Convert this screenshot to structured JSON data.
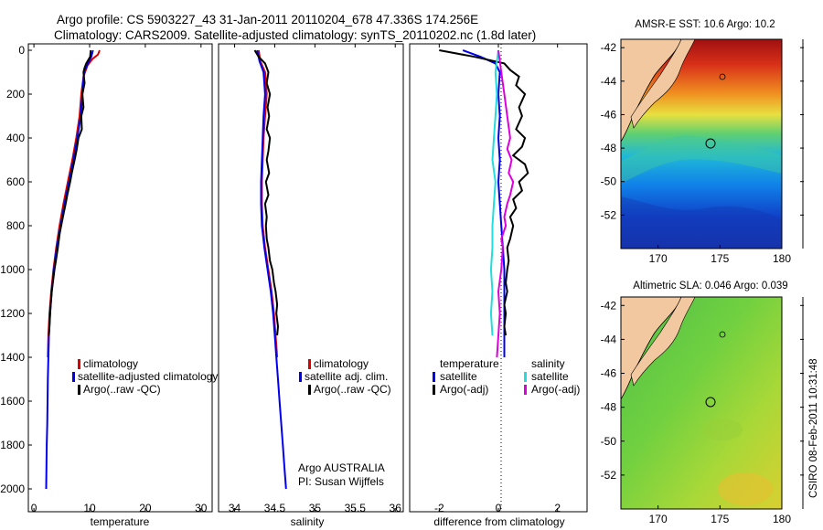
{
  "header": {
    "line1": "Argo profile: CS 5903227_43 31-Jan-2011 20110204_678 47.336S 174.256E",
    "line2": "Climatology: CARS2009. Satellite-adjusted climatology: synTS_20110202.nc (1.8d later)"
  },
  "footer": {
    "owner": "Argo AUSTRALIA",
    "pi": "PI: Susan Wijffels",
    "side_stamp": "CSIRO 08-Feb-2011 10:31:48"
  },
  "colors": {
    "climatology": "#dd0000",
    "satellite": "#0000ee",
    "argo": "#000000",
    "satellite_salinity": "#22dddd",
    "argo_adj_salinity": "#dd00dd",
    "land": "#f2c8a0"
  },
  "chart_data": [
    {
      "id": "temperature",
      "type": "line",
      "xlabel": "temperature",
      "ylabel": "",
      "xlim": [
        -1,
        32
      ],
      "ylim": [
        2050,
        0
      ],
      "x_ticks": [
        0,
        10,
        20,
        30
      ],
      "y_ticks": [
        0,
        200,
        400,
        600,
        800,
        1000,
        1200,
        1400,
        1600,
        1800,
        2000
      ],
      "legend": {
        "placement": "bottom-right",
        "entries": [
          "climatology",
          "satellite-adjusted climatology",
          "Argo(..raw -QC)"
        ]
      },
      "series": [
        {
          "name": "climatology",
          "color": "#dd0000",
          "points": [
            [
              11.8,
              0
            ],
            [
              11.5,
              20
            ],
            [
              10.5,
              40
            ],
            [
              9.6,
              70
            ],
            [
              8.9,
              120
            ],
            [
              8.5,
              200
            ],
            [
              8.2,
              300
            ],
            [
              7.6,
              400
            ],
            [
              6.9,
              500
            ],
            [
              6.1,
              600
            ],
            [
              5.3,
              700
            ],
            [
              4.6,
              800
            ],
            [
              4.0,
              900
            ],
            [
              3.5,
              1000
            ],
            [
              3.1,
              1100
            ],
            [
              2.8,
              1200
            ],
            [
              2.6,
              1300
            ],
            [
              2.5,
              1400
            ]
          ]
        },
        {
          "name": "satellite-adjusted climatology",
          "color": "#0000ee",
          "points": [
            [
              10.6,
              0
            ],
            [
              10.3,
              30
            ],
            [
              9.7,
              60
            ],
            [
              9.0,
              100
            ],
            [
              8.7,
              200
            ],
            [
              8.4,
              300
            ],
            [
              7.8,
              400
            ],
            [
              7.1,
              500
            ],
            [
              6.3,
              600
            ],
            [
              5.5,
              700
            ],
            [
              4.8,
              800
            ],
            [
              4.1,
              900
            ],
            [
              3.6,
              1000
            ],
            [
              3.2,
              1100
            ],
            [
              2.9,
              1200
            ],
            [
              2.7,
              1300
            ],
            [
              2.6,
              1400
            ],
            [
              2.5,
              1500
            ],
            [
              2.45,
              1600
            ],
            [
              2.4,
              1700
            ],
            [
              2.3,
              1800
            ],
            [
              2.25,
              1900
            ],
            [
              2.2,
              2000
            ]
          ]
        },
        {
          "name": "Argo(..raw -QC)",
          "color": "#000000",
          "points": [
            [
              10.2,
              0
            ],
            [
              10.1,
              30
            ],
            [
              9.4,
              60
            ],
            [
              9.1,
              80
            ],
            [
              8.9,
              100
            ],
            [
              9.1,
              150
            ],
            [
              8.7,
              200
            ],
            [
              8.9,
              260
            ],
            [
              8.5,
              300
            ],
            [
              8.6,
              360
            ],
            [
              8.0,
              400
            ],
            [
              7.7,
              450
            ],
            [
              7.3,
              500
            ],
            [
              6.8,
              560
            ],
            [
              6.5,
              600
            ],
            [
              6.0,
              660
            ],
            [
              5.7,
              700
            ],
            [
              5.2,
              760
            ],
            [
              4.9,
              800
            ],
            [
              4.6,
              840
            ],
            [
              4.3,
              900
            ],
            [
              4.0,
              950
            ],
            [
              3.7,
              1000
            ],
            [
              3.4,
              1060
            ],
            [
              3.2,
              1100
            ],
            [
              3.0,
              1160
            ],
            [
              2.9,
              1200
            ],
            [
              2.8,
              1260
            ],
            [
              2.7,
              1300
            ]
          ]
        }
      ]
    },
    {
      "id": "salinity",
      "type": "line",
      "xlabel": "salinity",
      "ylabel": "",
      "xlim": [
        33.8,
        36.1
      ],
      "ylim": [
        2050,
        0
      ],
      "x_ticks": [
        34,
        34.5,
        35,
        35.5,
        36
      ],
      "legend": {
        "placement": "bottom-right",
        "entries": [
          "climatology",
          "satellite adj. clim.",
          "Argo(..raw -QC)"
        ]
      },
      "series": [
        {
          "name": "climatology",
          "color": "#dd0000",
          "points": [
            [
              34.3,
              0
            ],
            [
              34.32,
              50
            ],
            [
              34.38,
              100
            ],
            [
              34.4,
              200
            ],
            [
              34.38,
              300
            ],
            [
              34.36,
              400
            ],
            [
              34.35,
              500
            ],
            [
              34.34,
              600
            ],
            [
              34.34,
              700
            ],
            [
              34.35,
              800
            ],
            [
              34.38,
              900
            ],
            [
              34.42,
              1000
            ],
            [
              34.46,
              1100
            ],
            [
              34.49,
              1200
            ],
            [
              34.51,
              1300
            ],
            [
              34.53,
              1400
            ]
          ]
        },
        {
          "name": "satellite adj. clim.",
          "color": "#0000ee",
          "points": [
            [
              34.28,
              0
            ],
            [
              34.31,
              50
            ],
            [
              34.36,
              100
            ],
            [
              34.38,
              200
            ],
            [
              34.36,
              300
            ],
            [
              34.35,
              400
            ],
            [
              34.34,
              500
            ],
            [
              34.33,
              600
            ],
            [
              34.33,
              700
            ],
            [
              34.34,
              800
            ],
            [
              34.37,
              900
            ],
            [
              34.41,
              1000
            ],
            [
              34.45,
              1100
            ],
            [
              34.48,
              1200
            ],
            [
              34.5,
              1300
            ],
            [
              34.52,
              1400
            ],
            [
              34.54,
              1500
            ],
            [
              34.56,
              1600
            ],
            [
              34.58,
              1700
            ],
            [
              34.6,
              1800
            ],
            [
              34.62,
              1900
            ],
            [
              34.64,
              2000
            ]
          ]
        },
        {
          "name": "Argo(..raw -QC)",
          "color": "#000000",
          "points": [
            [
              34.25,
              0
            ],
            [
              34.3,
              30
            ],
            [
              34.38,
              60
            ],
            [
              34.42,
              100
            ],
            [
              34.4,
              150
            ],
            [
              34.44,
              200
            ],
            [
              34.41,
              260
            ],
            [
              34.43,
              300
            ],
            [
              34.4,
              360
            ],
            [
              34.44,
              400
            ],
            [
              34.42,
              460
            ],
            [
              34.4,
              500
            ],
            [
              34.43,
              560
            ],
            [
              34.39,
              600
            ],
            [
              34.42,
              660
            ],
            [
              34.38,
              700
            ],
            [
              34.4,
              760
            ],
            [
              34.39,
              800
            ],
            [
              34.4,
              860
            ],
            [
              34.42,
              900
            ],
            [
              34.44,
              960
            ],
            [
              34.47,
              1000
            ],
            [
              34.49,
              1060
            ],
            [
              34.51,
              1100
            ],
            [
              34.53,
              1160
            ],
            [
              34.52,
              1200
            ],
            [
              34.54,
              1260
            ],
            [
              34.53,
              1300
            ]
          ]
        }
      ]
    },
    {
      "id": "difference",
      "type": "line",
      "xlabel": "difference from climatology",
      "ylabel": "",
      "xlim": [
        -3,
        3
      ],
      "ylim": [
        2050,
        0
      ],
      "x_ticks": [
        -2,
        0,
        2
      ],
      "legend": {
        "placement": "bottom",
        "entries": [
          "temperature",
          "satellite",
          "Argo(-adj)",
          "salinity",
          "satellite",
          "Argo(-adj)"
        ]
      },
      "series": [
        {
          "name": "temperature satellite",
          "color": "#0000ee",
          "points": [
            [
              -1.2,
              0
            ],
            [
              -0.6,
              30
            ],
            [
              -0.1,
              60
            ],
            [
              0.05,
              100
            ],
            [
              0.0,
              200
            ],
            [
              0.05,
              300
            ],
            [
              0.0,
              400
            ],
            [
              0.05,
              500
            ],
            [
              0.0,
              600
            ],
            [
              0.05,
              700
            ],
            [
              0.1,
              800
            ],
            [
              0.15,
              900
            ],
            [
              0.2,
              1000
            ],
            [
              0.2,
              1100
            ],
            [
              0.2,
              1200
            ],
            [
              0.2,
              1300
            ],
            [
              0.2,
              1400
            ]
          ]
        },
        {
          "name": "temperature Argo(-adj)",
          "color": "#000000",
          "points": [
            [
              -2.0,
              0
            ],
            [
              -0.8,
              30
            ],
            [
              0.2,
              60
            ],
            [
              0.4,
              90
            ],
            [
              0.7,
              120
            ],
            [
              0.6,
              160
            ],
            [
              0.9,
              200
            ],
            [
              0.7,
              260
            ],
            [
              0.8,
              300
            ],
            [
              0.6,
              360
            ],
            [
              0.9,
              400
            ],
            [
              0.8,
              440
            ],
            [
              0.5,
              480
            ],
            [
              0.9,
              520
            ],
            [
              1.0,
              560
            ],
            [
              0.7,
              600
            ],
            [
              0.8,
              640
            ],
            [
              0.5,
              680
            ],
            [
              0.6,
              720
            ],
            [
              0.4,
              760
            ],
            [
              0.5,
              800
            ],
            [
              0.4,
              860
            ],
            [
              0.3,
              900
            ],
            [
              0.35,
              960
            ],
            [
              0.3,
              1000
            ],
            [
              0.25,
              1060
            ],
            [
              0.3,
              1100
            ],
            [
              0.2,
              1160
            ],
            [
              0.25,
              1200
            ],
            [
              0.2,
              1260
            ],
            [
              0.25,
              1300
            ]
          ]
        },
        {
          "name": "salinity satellite",
          "color": "#22dddd",
          "points": [
            [
              0.0,
              0
            ],
            [
              -0.1,
              100
            ],
            [
              -0.05,
              200
            ],
            [
              -0.1,
              300
            ],
            [
              -0.15,
              400
            ],
            [
              -0.2,
              500
            ],
            [
              -0.1,
              600
            ],
            [
              -0.15,
              700
            ],
            [
              -0.2,
              800
            ],
            [
              -0.2,
              900
            ],
            [
              -0.25,
              1000
            ],
            [
              -0.2,
              1100
            ],
            [
              -0.25,
              1200
            ],
            [
              -0.2,
              1300
            ]
          ]
        },
        {
          "name": "salinity Argo(-adj)",
          "color": "#dd00dd",
          "points": [
            [
              0.0,
              0
            ],
            [
              0.1,
              100
            ],
            [
              0.2,
              200
            ],
            [
              0.3,
              300
            ],
            [
              0.4,
              400
            ],
            [
              0.3,
              450
            ],
            [
              0.45,
              500
            ],
            [
              0.35,
              560
            ],
            [
              0.5,
              600
            ],
            [
              0.4,
              660
            ],
            [
              0.3,
              700
            ],
            [
              0.2,
              760
            ],
            [
              0.25,
              800
            ],
            [
              0.1,
              860
            ],
            [
              0.15,
              900
            ],
            [
              0.1,
              1000
            ],
            [
              0.0,
              1100
            ],
            [
              0.05,
              1200
            ],
            [
              0.0,
              1300
            ],
            [
              -0.05,
              1400
            ]
          ]
        }
      ]
    },
    {
      "id": "sst-map",
      "type": "heatmap",
      "title": "AMSR-E SST: 10.6  Argo: 10.2",
      "xlim": [
        167,
        180
      ],
      "ylim": [
        -54,
        -41.5
      ],
      "x_ticks": [
        170,
        175,
        180
      ],
      "y_ticks": [
        -42,
        -44,
        -46,
        -48,
        -50,
        -52
      ],
      "profile_position": [
        174.256,
        -47.336
      ],
      "colormap": "jet"
    },
    {
      "id": "sla-map",
      "type": "heatmap",
      "title": "Altimetric SLA: 0.046  Argo: 0.039",
      "xlim": [
        167,
        180
      ],
      "ylim": [
        -54,
        -41.5
      ],
      "x_ticks": [
        170,
        175,
        180
      ],
      "y_ticks": [
        -42,
        -44,
        -46,
        -48,
        -50,
        -52
      ],
      "profile_position": [
        174.256,
        -47.336
      ],
      "colormap": "jet"
    }
  ]
}
